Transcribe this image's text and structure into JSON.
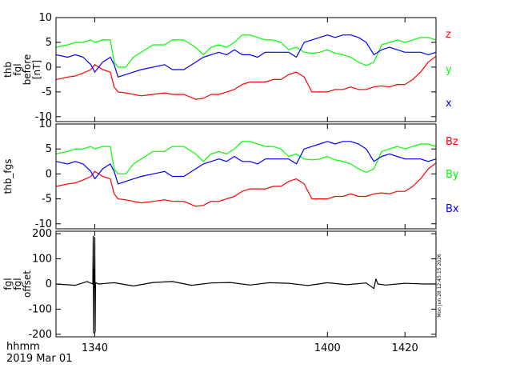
{
  "chart_data": [
    {
      "type": "line",
      "ylabel_lines": [
        "thb",
        "fgl",
        "before",
        "[nT]"
      ],
      "xlim": [
        1330,
        1428
      ],
      "ylim": [
        -11,
        10
      ],
      "yticks": [
        10,
        5,
        0,
        -5,
        -10
      ],
      "series": [
        {
          "name": "z",
          "color": "#ff0000",
          "x": [
            1330,
            1333,
            1335,
            1337,
            1339,
            1340,
            1342,
            1344,
            1345,
            1346,
            1348,
            1350,
            1352,
            1355,
            1358,
            1360,
            1363,
            1366,
            1368,
            1370,
            1372,
            1374,
            1376,
            1378,
            1380,
            1382,
            1384,
            1386,
            1388,
            1390,
            1392,
            1394,
            1396,
            1398,
            1400,
            1402,
            1404,
            1406,
            1408,
            1410,
            1412,
            1414,
            1416,
            1418,
            1420,
            1422,
            1424,
            1426,
            1428
          ],
          "y": [
            -2.5,
            -2,
            -1.8,
            -1.2,
            -0.5,
            0.5,
            -0.5,
            -1,
            -4,
            -5,
            -5.2,
            -5.5,
            -5.8,
            -5.5,
            -5.2,
            -5.5,
            -5.5,
            -6.5,
            -6.3,
            -5.5,
            -5.5,
            -5,
            -4.5,
            -3.5,
            -3,
            -3,
            -3,
            -2.5,
            -2.5,
            -1.5,
            -1,
            -2,
            -5,
            -5,
            -5,
            -4.5,
            -4.5,
            -4,
            -4.5,
            -4.5,
            -4,
            -3.8,
            -4,
            -3.5,
            -3.5,
            -2.5,
            -1,
            1,
            2.2
          ]
        },
        {
          "name": "y",
          "color": "#00ff00",
          "x": [
            1330,
            1333,
            1335,
            1337,
            1339,
            1340,
            1342,
            1344,
            1345,
            1346,
            1348,
            1350,
            1352,
            1355,
            1358,
            1360,
            1363,
            1366,
            1368,
            1370,
            1372,
            1374,
            1376,
            1378,
            1380,
            1382,
            1384,
            1386,
            1388,
            1390,
            1392,
            1394,
            1396,
            1398,
            1400,
            1402,
            1404,
            1406,
            1408,
            1410,
            1412,
            1414,
            1416,
            1418,
            1420,
            1422,
            1424,
            1426,
            1428
          ],
          "y": [
            4,
            4.5,
            5,
            5,
            5.5,
            5,
            5.5,
            5.5,
            1,
            0,
            0,
            2,
            3,
            4.5,
            4.5,
            5.5,
            5.5,
            4,
            2.5,
            4,
            4.5,
            4,
            5,
            6.5,
            6.5,
            6,
            5.5,
            5.5,
            5,
            3.5,
            4,
            3,
            2.8,
            3,
            3.5,
            2.8,
            2.5,
            2,
            1,
            0.3,
            1,
            4.5,
            5,
            5.5,
            5,
            5.5,
            6,
            6,
            5.5
          ]
        },
        {
          "name": "x",
          "color": "#0000ff",
          "x": [
            1330,
            1333,
            1335,
            1337,
            1339,
            1340,
            1342,
            1344,
            1345,
            1346,
            1348,
            1350,
            1352,
            1355,
            1358,
            1360,
            1363,
            1366,
            1368,
            1370,
            1372,
            1374,
            1376,
            1378,
            1380,
            1382,
            1384,
            1386,
            1388,
            1390,
            1392,
            1394,
            1396,
            1398,
            1400,
            1402,
            1404,
            1406,
            1408,
            1410,
            1412,
            1414,
            1416,
            1418,
            1420,
            1422,
            1424,
            1426,
            1428
          ],
          "y": [
            2.5,
            2,
            2.5,
            2,
            0.5,
            -1,
            1,
            2,
            0.5,
            -2,
            -1.5,
            -1,
            -0.5,
            0,
            0.5,
            -0.5,
            -0.5,
            1,
            2,
            2.5,
            3,
            2.5,
            3.5,
            2.5,
            2.5,
            2,
            3,
            3,
            3,
            3,
            2,
            5,
            5.5,
            6,
            6.5,
            6,
            6.5,
            6.5,
            6,
            5,
            2.5,
            3.5,
            4,
            3.5,
            3,
            3,
            3,
            2.5,
            3
          ]
        }
      ]
    },
    {
      "type": "line",
      "ylabel_lines": [
        "thb_fgs"
      ],
      "xlim": [
        1330,
        1428
      ],
      "ylim": [
        -11,
        10
      ],
      "yticks": [
        10,
        5,
        0,
        -5,
        -10
      ],
      "series": [
        {
          "name": "Bz",
          "color": "#ff0000",
          "x": [
            1330,
            1333,
            1335,
            1337,
            1339,
            1340,
            1342,
            1344,
            1345,
            1346,
            1348,
            1350,
            1352,
            1355,
            1358,
            1360,
            1363,
            1366,
            1368,
            1370,
            1372,
            1374,
            1376,
            1378,
            1380,
            1382,
            1384,
            1386,
            1388,
            1390,
            1392,
            1394,
            1396,
            1398,
            1400,
            1402,
            1404,
            1406,
            1408,
            1410,
            1412,
            1414,
            1416,
            1418,
            1420,
            1422,
            1424,
            1426,
            1428
          ],
          "y": [
            -2.5,
            -2,
            -1.8,
            -1.2,
            -0.5,
            0.5,
            -0.5,
            -1,
            -4,
            -5,
            -5.2,
            -5.5,
            -5.8,
            -5.5,
            -5.2,
            -5.5,
            -5.5,
            -6.5,
            -6.3,
            -5.5,
            -5.5,
            -5,
            -4.5,
            -3.5,
            -3,
            -3,
            -3,
            -2.5,
            -2.5,
            -1.5,
            -1,
            -2,
            -5,
            -5,
            -5,
            -4.5,
            -4.5,
            -4,
            -4.5,
            -4.5,
            -4,
            -3.8,
            -4,
            -3.5,
            -3.5,
            -2.5,
            -1,
            1,
            2.2
          ]
        },
        {
          "name": "By",
          "color": "#00ff00",
          "x": [
            1330,
            1333,
            1335,
            1337,
            1339,
            1340,
            1342,
            1344,
            1345,
            1346,
            1348,
            1350,
            1352,
            1355,
            1358,
            1360,
            1363,
            1366,
            1368,
            1370,
            1372,
            1374,
            1376,
            1378,
            1380,
            1382,
            1384,
            1386,
            1388,
            1390,
            1392,
            1394,
            1396,
            1398,
            1400,
            1402,
            1404,
            1406,
            1408,
            1410,
            1412,
            1414,
            1416,
            1418,
            1420,
            1422,
            1424,
            1426,
            1428
          ],
          "y": [
            4,
            4.5,
            5,
            5,
            5.5,
            5,
            5.5,
            5.5,
            1,
            0,
            0,
            2,
            3,
            4.5,
            4.5,
            5.5,
            5.5,
            4,
            2.5,
            4,
            4.5,
            4,
            5,
            6.5,
            6.5,
            6,
            5.5,
            5.5,
            5,
            3.5,
            4,
            3,
            2.8,
            3,
            3.5,
            2.8,
            2.5,
            2,
            1,
            0.3,
            1,
            4.5,
            5,
            5.5,
            5,
            5.5,
            6,
            6,
            5.5
          ]
        },
        {
          "name": "Bx",
          "color": "#0000ff",
          "x": [
            1330,
            1333,
            1335,
            1337,
            1339,
            1340,
            1342,
            1344,
            1345,
            1346,
            1348,
            1350,
            1352,
            1355,
            1358,
            1360,
            1363,
            1366,
            1368,
            1370,
            1372,
            1374,
            1376,
            1378,
            1380,
            1382,
            1384,
            1386,
            1388,
            1390,
            1392,
            1394,
            1396,
            1398,
            1400,
            1402,
            1404,
            1406,
            1408,
            1410,
            1412,
            1414,
            1416,
            1418,
            1420,
            1422,
            1424,
            1426,
            1428
          ],
          "y": [
            2.5,
            2,
            2.5,
            2,
            0.5,
            -1,
            1,
            2,
            0.5,
            -2,
            -1.5,
            -1,
            -0.5,
            0,
            0.5,
            -0.5,
            -0.5,
            1,
            2,
            2.5,
            3,
            2.5,
            3.5,
            2.5,
            2.5,
            2,
            3,
            3,
            3,
            3,
            2,
            5,
            5.5,
            6,
            6.5,
            6,
            6.5,
            6.5,
            6,
            5,
            2.5,
            3.5,
            4,
            3.5,
            3,
            3,
            3,
            2.5,
            3
          ]
        }
      ]
    },
    {
      "type": "line",
      "ylabel_lines": [
        "fgl",
        "fgl",
        "offset"
      ],
      "xlim": [
        1330,
        1428
      ],
      "ylim": [
        -210,
        210
      ],
      "yticks": [
        200,
        100,
        0,
        -100,
        -200
      ],
      "series": [
        {
          "name": "",
          "color": "#000000",
          "x": [
            1330,
            1335,
            1338,
            1339.5,
            1339.6,
            1339.7,
            1339.8,
            1339.9,
            1340.0,
            1340.1,
            1340.2,
            1340.3,
            1341,
            1345,
            1350,
            1355,
            1360,
            1365,
            1370,
            1375,
            1380,
            1385,
            1390,
            1395,
            1400,
            1405,
            1410,
            1412,
            1412.5,
            1413,
            1415,
            1420,
            1425,
            1428
          ],
          "y": [
            0,
            -5,
            10,
            0,
            190,
            -195,
            60,
            -15,
            185,
            -190,
            0,
            5,
            0,
            5,
            -8,
            6,
            10,
            -5,
            4,
            6,
            -4,
            5,
            3,
            -6,
            5,
            -3,
            4,
            -18,
            20,
            0,
            -4,
            3,
            0,
            0
          ]
        }
      ],
      "timestamp": "Mon Jun 28 12:45:15 2026"
    }
  ],
  "xaxis": {
    "ticks": [
      1340,
      1400,
      1420
    ],
    "tick_labels": [
      "1340",
      "1400",
      "1420"
    ],
    "label": "hhmm",
    "date": "2019 Mar 01"
  }
}
